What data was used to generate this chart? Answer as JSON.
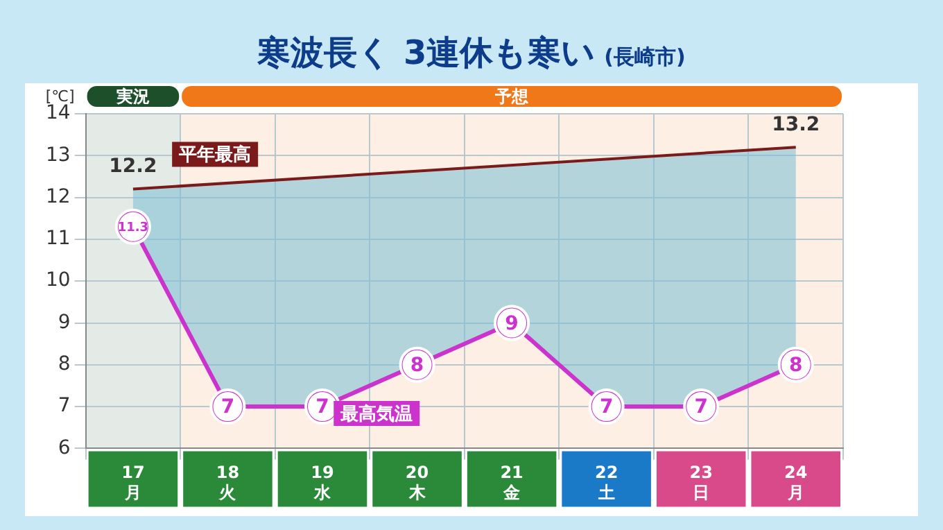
{
  "chart_data": {
    "type": "line",
    "title": "寒波長く 3連休も寒い",
    "subtitle": "(長崎市)",
    "ylabel": "[℃]",
    "categories": [
      "17\n月",
      "18\n火",
      "19\n水",
      "20\n木",
      "21\n金",
      "22\n土",
      "23\n日",
      "24\n月"
    ],
    "series": [
      {
        "name": "平年最高",
        "color": "#7a1a1a",
        "values": [
          12.2,
          null,
          null,
          null,
          null,
          null,
          null,
          13.2
        ],
        "value_labels": [
          "12.2",
          null,
          null,
          null,
          null,
          null,
          null,
          "13.2"
        ],
        "marker": "none"
      },
      {
        "name": "最高気温",
        "color": "#cc33cc",
        "values": [
          11.3,
          7,
          7,
          8,
          9,
          7,
          7,
          8
        ],
        "value_labels": [
          "11.3",
          "7",
          "7",
          "8",
          "9",
          "7",
          "7",
          "8"
        ],
        "marker": "circle"
      }
    ],
    "ylim": [
      6,
      14
    ],
    "yticks": [
      6,
      7,
      8,
      9,
      10,
      11,
      12,
      13,
      14
    ],
    "grid": true,
    "legend": false,
    "bands": [
      {
        "axis": "x",
        "from": "17\n月",
        "to": "17\n月",
        "label": "実況",
        "color": "#1d4f2b"
      },
      {
        "axis": "x",
        "from": "18\n火",
        "to": "24\n月",
        "label": "予想",
        "color": "#f07818"
      }
    ]
  }
}
